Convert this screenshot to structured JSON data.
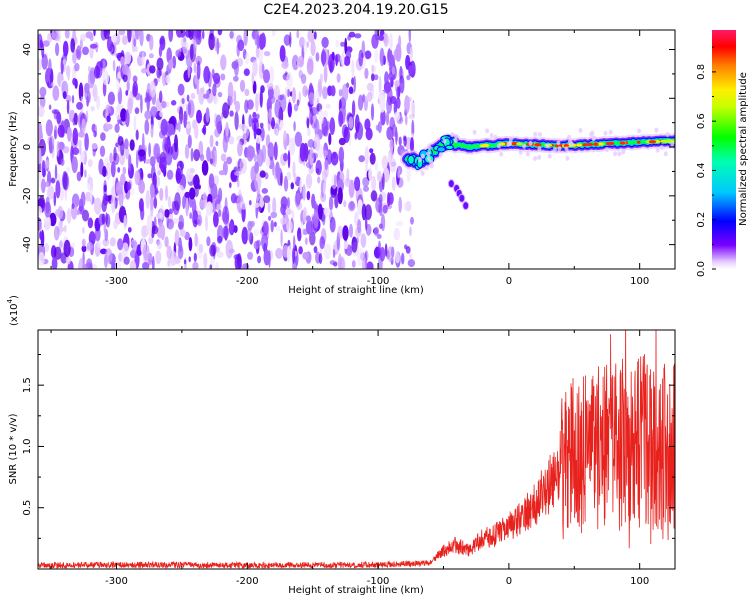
{
  "title": "C2E4.2023.204.19.20.G15",
  "colors": {
    "snr_line": "#e8211d",
    "noise_purple": "#6a0dff",
    "axis": "#000000"
  },
  "chart_data": [
    {
      "type": "heatmap",
      "xlabel": "Height of straight line (km)",
      "ylabel": "Frequency (Hz)",
      "xlim": [
        -360,
        127
      ],
      "ylim": [
        -50,
        48
      ],
      "xticks": [
        "-300",
        "-200",
        "-100",
        "0",
        "100"
      ],
      "yticks": [
        "-40",
        "-20",
        "0",
        "20",
        "40"
      ],
      "colorbar": {
        "label": "Normalized spectral amplitude",
        "range": [
          0,
          0.97
        ],
        "ticks": [
          "0.0",
          "0.2",
          "0.4",
          "0.6",
          "0.8"
        ],
        "colormap": "rainbow"
      },
      "features": {
        "noise_region_x": [
          -360,
          -73
        ],
        "signal_track": {
          "x": [
            -78,
            -70,
            -62,
            -55,
            -48,
            -40,
            -30,
            -20,
            -10,
            0,
            20,
            40,
            60,
            80,
            100,
            127
          ],
          "y": [
            -5,
            -6,
            -4,
            -1,
            2,
            1,
            0,
            0.5,
            1,
            1.5,
            1,
            0.5,
            1,
            1.5,
            2,
            2.5
          ]
        },
        "secondary_branch": {
          "x": [
            -44,
            -40,
            -38,
            -36,
            -33
          ],
          "y": [
            -15,
            -17,
            -19,
            -21,
            -24
          ]
        }
      }
    },
    {
      "type": "line",
      "xlabel": "Height of straight line (km)",
      "ylabel": "SNR (10 * v/v)",
      "yscale_label": "(x10",
      "yscale_exp": "4",
      "yscale_close": ")",
      "xlim": [
        -360,
        127
      ],
      "ylim": [
        0,
        19500
      ],
      "xticks": [
        "-300",
        "-200",
        "-100",
        "0",
        "100"
      ],
      "yticks": [
        "0.5",
        "1.0",
        "1.5"
      ],
      "series": [
        {
          "x": [
            -360,
            -300,
            -200,
            -100,
            -60,
            -50,
            -40,
            -30,
            -20,
            -10,
            0,
            10,
            20,
            30,
            40,
            50,
            60,
            70,
            80,
            90,
            100,
            110,
            120,
            127
          ],
          "y": [
            300,
            350,
            300,
            350,
            500,
            1500,
            2000,
            1500,
            2500,
            2800,
            3500,
            4200,
            5300,
            6800,
            8500,
            9200,
            9600,
            10000,
            10200,
            10000,
            10500,
            10200,
            9800,
            10300
          ]
        }
      ]
    }
  ]
}
